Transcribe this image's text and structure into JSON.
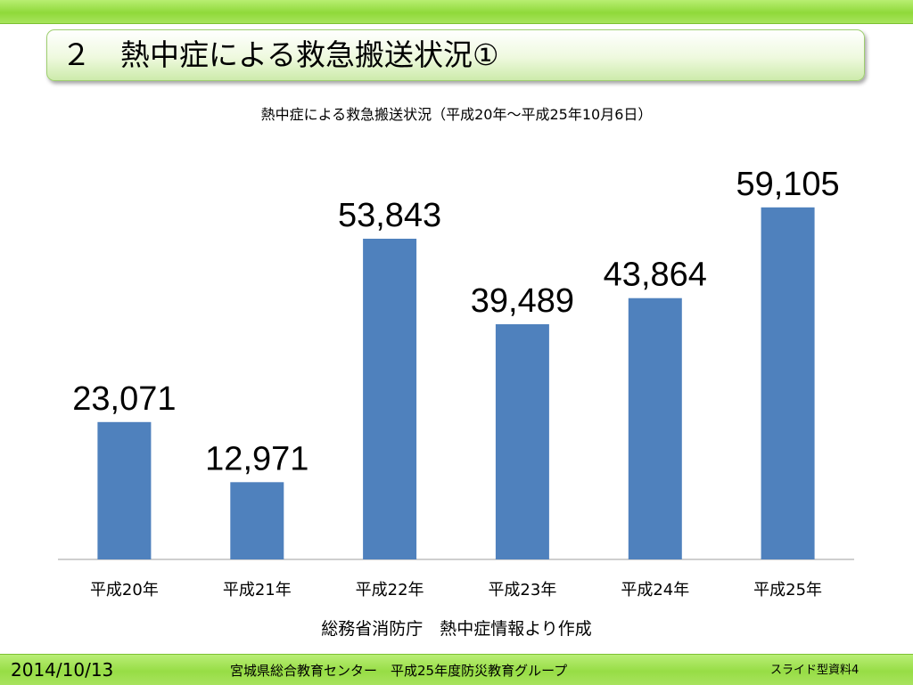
{
  "slide": {
    "title": "２　熱中症による救急搬送状況①",
    "source": "総務省消防庁　熱中症情報より作成"
  },
  "footer": {
    "date": "2014/10/13",
    "organization": "宮城県総合教育センター　平成25年度防災教育グループ",
    "page_label": "スライド型資料4"
  },
  "colors": {
    "bar": "#4f81bd",
    "header_green": "#94dc40"
  },
  "chart_data": {
    "type": "bar",
    "title": "熱中症による救急搬送状況（平成20年～平成25年10月6日）",
    "categories": [
      "平成20年",
      "平成21年",
      "平成22年",
      "平成23年",
      "平成24年",
      "平成25年"
    ],
    "values": [
      23071,
      12971,
      53843,
      39489,
      43864,
      59105
    ],
    "value_labels": [
      "23,071",
      "12,971",
      "53,843",
      "39,489",
      "43,864",
      "59,105"
    ],
    "xlabel": "",
    "ylabel": "",
    "ylim": [
      0,
      70000
    ],
    "grid": false,
    "legend": "none"
  }
}
